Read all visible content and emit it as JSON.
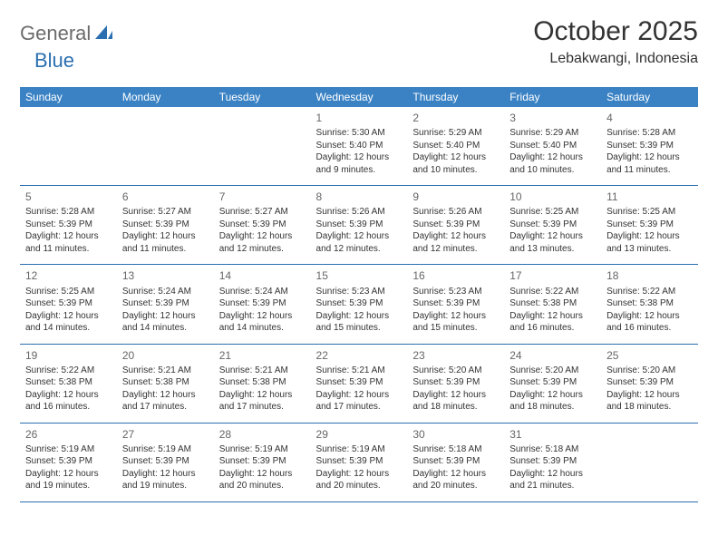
{
  "brand": {
    "text1": "General",
    "text2": "Blue"
  },
  "title": "October 2025",
  "location": "Lebakwangi, Indonesia",
  "colors": {
    "header_bg": "#3a82c4",
    "header_text": "#ffffff",
    "border": "#2b6fb0",
    "brand_gray": "#6b6b6b",
    "brand_blue": "#2b6fb0",
    "text": "#333333",
    "daynum": "#666666",
    "page_bg": "#ffffff"
  },
  "weekdays": [
    "Sunday",
    "Monday",
    "Tuesday",
    "Wednesday",
    "Thursday",
    "Friday",
    "Saturday"
  ],
  "weeks": [
    [
      null,
      null,
      null,
      {
        "n": "1",
        "sr": "Sunrise: 5:30 AM",
        "ss": "Sunset: 5:40 PM",
        "d1": "Daylight: 12 hours",
        "d2": "and 9 minutes."
      },
      {
        "n": "2",
        "sr": "Sunrise: 5:29 AM",
        "ss": "Sunset: 5:40 PM",
        "d1": "Daylight: 12 hours",
        "d2": "and 10 minutes."
      },
      {
        "n": "3",
        "sr": "Sunrise: 5:29 AM",
        "ss": "Sunset: 5:40 PM",
        "d1": "Daylight: 12 hours",
        "d2": "and 10 minutes."
      },
      {
        "n": "4",
        "sr": "Sunrise: 5:28 AM",
        "ss": "Sunset: 5:39 PM",
        "d1": "Daylight: 12 hours",
        "d2": "and 11 minutes."
      }
    ],
    [
      {
        "n": "5",
        "sr": "Sunrise: 5:28 AM",
        "ss": "Sunset: 5:39 PM",
        "d1": "Daylight: 12 hours",
        "d2": "and 11 minutes."
      },
      {
        "n": "6",
        "sr": "Sunrise: 5:27 AM",
        "ss": "Sunset: 5:39 PM",
        "d1": "Daylight: 12 hours",
        "d2": "and 11 minutes."
      },
      {
        "n": "7",
        "sr": "Sunrise: 5:27 AM",
        "ss": "Sunset: 5:39 PM",
        "d1": "Daylight: 12 hours",
        "d2": "and 12 minutes."
      },
      {
        "n": "8",
        "sr": "Sunrise: 5:26 AM",
        "ss": "Sunset: 5:39 PM",
        "d1": "Daylight: 12 hours",
        "d2": "and 12 minutes."
      },
      {
        "n": "9",
        "sr": "Sunrise: 5:26 AM",
        "ss": "Sunset: 5:39 PM",
        "d1": "Daylight: 12 hours",
        "d2": "and 12 minutes."
      },
      {
        "n": "10",
        "sr": "Sunrise: 5:25 AM",
        "ss": "Sunset: 5:39 PM",
        "d1": "Daylight: 12 hours",
        "d2": "and 13 minutes."
      },
      {
        "n": "11",
        "sr": "Sunrise: 5:25 AM",
        "ss": "Sunset: 5:39 PM",
        "d1": "Daylight: 12 hours",
        "d2": "and 13 minutes."
      }
    ],
    [
      {
        "n": "12",
        "sr": "Sunrise: 5:25 AM",
        "ss": "Sunset: 5:39 PM",
        "d1": "Daylight: 12 hours",
        "d2": "and 14 minutes."
      },
      {
        "n": "13",
        "sr": "Sunrise: 5:24 AM",
        "ss": "Sunset: 5:39 PM",
        "d1": "Daylight: 12 hours",
        "d2": "and 14 minutes."
      },
      {
        "n": "14",
        "sr": "Sunrise: 5:24 AM",
        "ss": "Sunset: 5:39 PM",
        "d1": "Daylight: 12 hours",
        "d2": "and 14 minutes."
      },
      {
        "n": "15",
        "sr": "Sunrise: 5:23 AM",
        "ss": "Sunset: 5:39 PM",
        "d1": "Daylight: 12 hours",
        "d2": "and 15 minutes."
      },
      {
        "n": "16",
        "sr": "Sunrise: 5:23 AM",
        "ss": "Sunset: 5:39 PM",
        "d1": "Daylight: 12 hours",
        "d2": "and 15 minutes."
      },
      {
        "n": "17",
        "sr": "Sunrise: 5:22 AM",
        "ss": "Sunset: 5:38 PM",
        "d1": "Daylight: 12 hours",
        "d2": "and 16 minutes."
      },
      {
        "n": "18",
        "sr": "Sunrise: 5:22 AM",
        "ss": "Sunset: 5:38 PM",
        "d1": "Daylight: 12 hours",
        "d2": "and 16 minutes."
      }
    ],
    [
      {
        "n": "19",
        "sr": "Sunrise: 5:22 AM",
        "ss": "Sunset: 5:38 PM",
        "d1": "Daylight: 12 hours",
        "d2": "and 16 minutes."
      },
      {
        "n": "20",
        "sr": "Sunrise: 5:21 AM",
        "ss": "Sunset: 5:38 PM",
        "d1": "Daylight: 12 hours",
        "d2": "and 17 minutes."
      },
      {
        "n": "21",
        "sr": "Sunrise: 5:21 AM",
        "ss": "Sunset: 5:38 PM",
        "d1": "Daylight: 12 hours",
        "d2": "and 17 minutes."
      },
      {
        "n": "22",
        "sr": "Sunrise: 5:21 AM",
        "ss": "Sunset: 5:39 PM",
        "d1": "Daylight: 12 hours",
        "d2": "and 17 minutes."
      },
      {
        "n": "23",
        "sr": "Sunrise: 5:20 AM",
        "ss": "Sunset: 5:39 PM",
        "d1": "Daylight: 12 hours",
        "d2": "and 18 minutes."
      },
      {
        "n": "24",
        "sr": "Sunrise: 5:20 AM",
        "ss": "Sunset: 5:39 PM",
        "d1": "Daylight: 12 hours",
        "d2": "and 18 minutes."
      },
      {
        "n": "25",
        "sr": "Sunrise: 5:20 AM",
        "ss": "Sunset: 5:39 PM",
        "d1": "Daylight: 12 hours",
        "d2": "and 18 minutes."
      }
    ],
    [
      {
        "n": "26",
        "sr": "Sunrise: 5:19 AM",
        "ss": "Sunset: 5:39 PM",
        "d1": "Daylight: 12 hours",
        "d2": "and 19 minutes."
      },
      {
        "n": "27",
        "sr": "Sunrise: 5:19 AM",
        "ss": "Sunset: 5:39 PM",
        "d1": "Daylight: 12 hours",
        "d2": "and 19 minutes."
      },
      {
        "n": "28",
        "sr": "Sunrise: 5:19 AM",
        "ss": "Sunset: 5:39 PM",
        "d1": "Daylight: 12 hours",
        "d2": "and 20 minutes."
      },
      {
        "n": "29",
        "sr": "Sunrise: 5:19 AM",
        "ss": "Sunset: 5:39 PM",
        "d1": "Daylight: 12 hours",
        "d2": "and 20 minutes."
      },
      {
        "n": "30",
        "sr": "Sunrise: 5:18 AM",
        "ss": "Sunset: 5:39 PM",
        "d1": "Daylight: 12 hours",
        "d2": "and 20 minutes."
      },
      {
        "n": "31",
        "sr": "Sunrise: 5:18 AM",
        "ss": "Sunset: 5:39 PM",
        "d1": "Daylight: 12 hours",
        "d2": "and 21 minutes."
      },
      null
    ]
  ]
}
